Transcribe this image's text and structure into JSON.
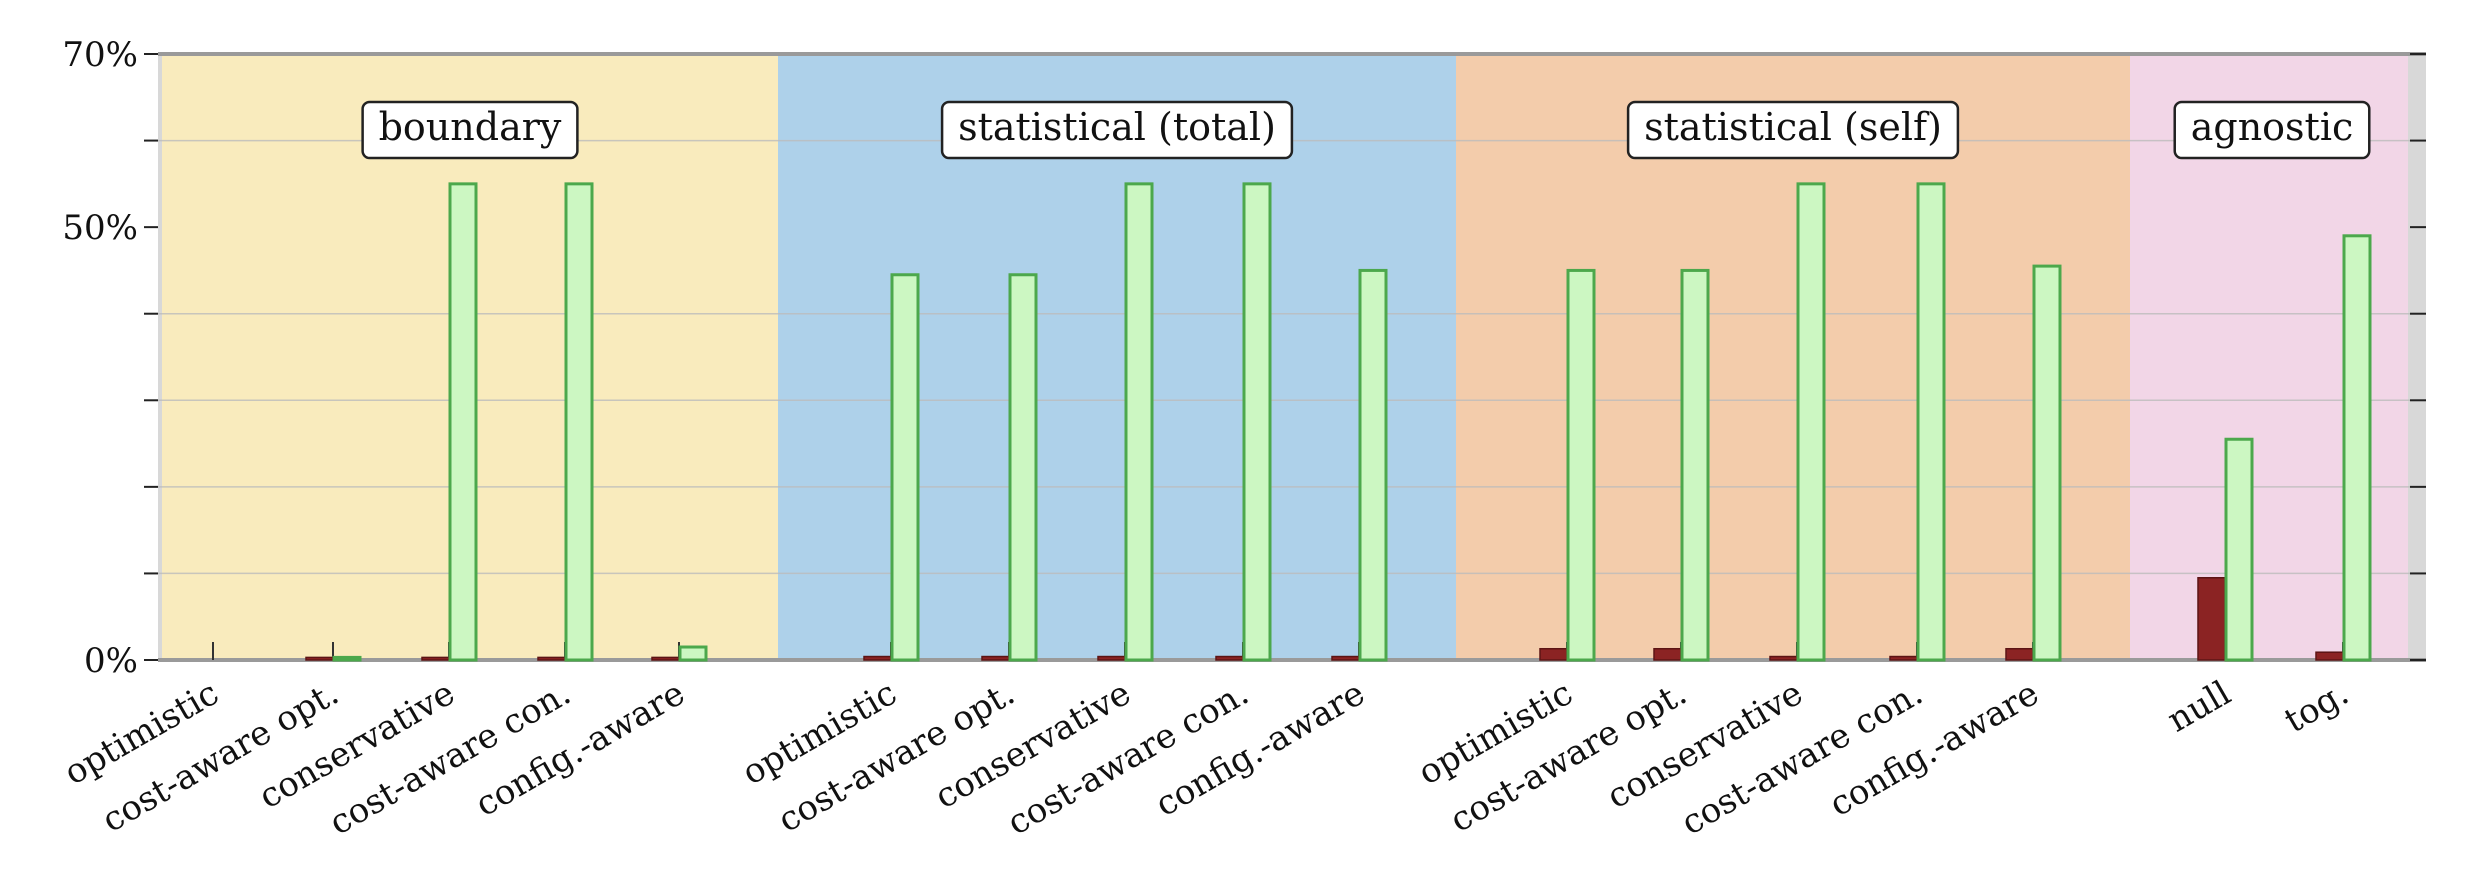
{
  "chart_data": {
    "type": "bar",
    "title": "",
    "xlabel": "",
    "ylabel": "",
    "ylim": [
      0,
      70
    ],
    "yticks": [
      {
        "value": 0,
        "label": "0%"
      },
      {
        "value": 50,
        "label": "50%"
      },
      {
        "value": 70,
        "label": "70%"
      }
    ],
    "grid_values": [
      10,
      20,
      30,
      40,
      60
    ],
    "groups": [
      {
        "name": "boundary",
        "color": "#f9ebbd",
        "categories": [
          "optimistic",
          "cost-aware opt.",
          "conservative",
          "cost-aware con.",
          "config.-aware"
        ],
        "values_red": [
          0,
          0.3,
          0.3,
          0.3,
          0.3
        ],
        "values_green": [
          0,
          0.3,
          55,
          55,
          1.5
        ]
      },
      {
        "name": "statistical (total)",
        "color": "#aed1ea",
        "categories": [
          "optimistic",
          "cost-aware opt.",
          "conservative",
          "cost-aware con.",
          "config.-aware"
        ],
        "values_red": [
          0.4,
          0.4,
          0.4,
          0.4,
          0.4
        ],
        "values_green": [
          44.5,
          44.5,
          55,
          55,
          45
        ]
      },
      {
        "name": "statistical (self)",
        "color": "#f3ccab",
        "categories": [
          "optimistic",
          "cost-aware opt.",
          "conservative",
          "cost-aware con.",
          "config.-aware"
        ],
        "values_red": [
          1.3,
          1.3,
          0.4,
          0.4,
          1.3
        ],
        "values_green": [
          45,
          45,
          55,
          55,
          45.5
        ]
      },
      {
        "name": "agnostic",
        "color": "#f2d6e7",
        "categories": [
          "null",
          "tog."
        ],
        "values_red": [
          9.5,
          0.9
        ],
        "values_green": [
          25.5,
          49
        ]
      }
    ],
    "colors": {
      "red_fill": "#8b2323",
      "red_stroke": "#5c1414",
      "green_fill": "#ccf7c2",
      "green_stroke": "#4ca84c"
    }
  }
}
